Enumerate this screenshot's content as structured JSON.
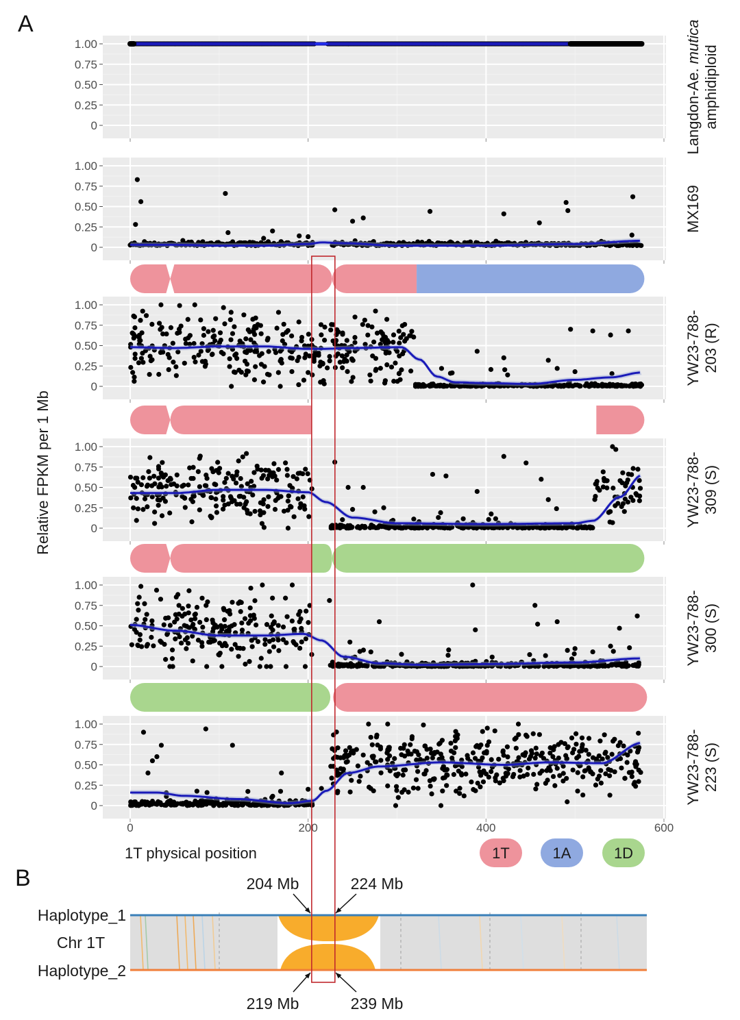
{
  "figure": {
    "panel_a_letter": "A",
    "panel_b_letter": "B"
  },
  "chart_data": {
    "type": "scatter",
    "title": "",
    "xlabel": "1T physical position",
    "ylabel": "Relative FPKM per 1 Mb",
    "xlim": [
      0,
      575
    ],
    "ylim": [
      0,
      1.0
    ],
    "x_ticks": [
      "0",
      "200",
      "400",
      "600"
    ],
    "x_tick_values": [
      0,
      200,
      400,
      600
    ],
    "y_ticks": [
      "0",
      "0.25",
      "0.50",
      "0.75",
      "1.00"
    ],
    "y_tick_values": [
      0,
      0.25,
      0.5,
      0.75,
      1.0
    ],
    "grid": true,
    "highlight_region_mb": [
      204,
      224
    ],
    "highlight_color": "#c0282d",
    "point_color": "#000000",
    "smooth_color": "#1a1ab8",
    "legend": {
      "placement": "bottom-right",
      "entries": [
        {
          "label": "1T",
          "color": "#ee939c"
        },
        {
          "label": "1A",
          "color": "#8fa9e0"
        },
        {
          "label": "1D",
          "color": "#a9d68e"
        }
      ]
    },
    "panels": [
      {
        "strip": [
          "Langdon-Ae. mutica",
          "amphidiploid"
        ],
        "strip_italic_part": "mutica",
        "karyotype": null,
        "constant_value": 1.0,
        "gap_mb": [
          208,
          222
        ],
        "smooth": [
          [
            0,
            1.0
          ],
          [
            575,
            1.0
          ]
        ]
      },
      {
        "strip": [
          "MX169"
        ],
        "karyotype": null,
        "outliers": [
          [
            8,
            0.83
          ],
          [
            12,
            0.56
          ],
          [
            6,
            0.28
          ],
          [
            107,
            0.66
          ],
          [
            205,
            0.06
          ],
          [
            230,
            0.46
          ],
          [
            250,
            0.32
          ],
          [
            262,
            0.36
          ],
          [
            337,
            0.44
          ],
          [
            420,
            0.41
          ],
          [
            460,
            0.3
          ],
          [
            490,
            0.55
          ],
          [
            492,
            0.45
          ],
          [
            565,
            0.62
          ],
          [
            564,
            0.15
          ],
          [
            150,
            0.11
          ],
          [
            160,
            0.2
          ],
          [
            110,
            0.18
          ],
          [
            190,
            0.14
          ],
          [
            200,
            0.13
          ]
        ],
        "baseline": 0.02,
        "spread": 0.04,
        "smooth": [
          [
            0,
            0.03
          ],
          [
            50,
            0.03
          ],
          [
            100,
            0.02
          ],
          [
            150,
            0.02
          ],
          [
            200,
            0.04
          ],
          [
            215,
            0.06
          ],
          [
            240,
            0.05
          ],
          [
            300,
            0.02
          ],
          [
            400,
            0.02
          ],
          [
            500,
            0.04
          ],
          [
            575,
            0.08
          ]
        ]
      },
      {
        "strip": [
          "YW23-788-",
          "203 (R)"
        ],
        "karyotype": [
          {
            "start": 0,
            "end": 45,
            "chrom": "1T",
            "shape": "cen-left"
          },
          {
            "start": 45,
            "end": 227,
            "chrom": "1T",
            "shape": "cen-right"
          },
          {
            "start": 227,
            "end": 322,
            "chrom": "1T",
            "shape": "left-cap"
          },
          {
            "start": 322,
            "end": 578,
            "chrom": "1A",
            "shape": "right-cap"
          }
        ],
        "scatter_segments": [
          {
            "from": 0,
            "to": 320,
            "center": 0.47,
            "spread": 0.26,
            "density": 1.1
          },
          {
            "from": 320,
            "to": 575,
            "center": 0.02,
            "spread": 0.02,
            "density": 1.0
          }
        ],
        "outliers": [
          [
            350,
            0.22
          ],
          [
            360,
            0.16
          ],
          [
            390,
            0.43
          ],
          [
            420,
            0.35
          ],
          [
            470,
            0.32
          ],
          [
            495,
            0.7
          ],
          [
            520,
            0.68
          ],
          [
            540,
            0.63
          ],
          [
            560,
            0.68
          ],
          [
            480,
            0.22
          ],
          [
            500,
            0.18
          ]
        ],
        "smooth": [
          [
            0,
            0.48
          ],
          [
            50,
            0.47
          ],
          [
            100,
            0.49
          ],
          [
            150,
            0.49
          ],
          [
            200,
            0.46
          ],
          [
            215,
            0.46
          ],
          [
            250,
            0.47
          ],
          [
            305,
            0.48
          ],
          [
            325,
            0.33
          ],
          [
            345,
            0.12
          ],
          [
            365,
            0.05
          ],
          [
            400,
            0.04
          ],
          [
            450,
            0.03
          ],
          [
            500,
            0.08
          ],
          [
            540,
            0.11
          ],
          [
            575,
            0.17
          ]
        ]
      },
      {
        "strip": [
          "YW23-788-",
          "309 (S)"
        ],
        "karyotype": [
          {
            "start": 0,
            "end": 45,
            "chrom": "1T",
            "shape": "cen-left"
          },
          {
            "start": 45,
            "end": 204,
            "chrom": "1T",
            "shape": "cen-right-flat"
          },
          {
            "start": 524,
            "end": 578,
            "chrom": "1T",
            "shape": "right-cap"
          }
        ],
        "scatter_segments": [
          {
            "from": 0,
            "to": 205,
            "center": 0.45,
            "spread": 0.26,
            "density": 1.1
          },
          {
            "from": 225,
            "to": 520,
            "center": 0.03,
            "spread": 0.03,
            "density": 1.0
          },
          {
            "from": 520,
            "to": 575,
            "center": 0.45,
            "spread": 0.25,
            "density": 0.9
          }
        ],
        "outliers": [
          [
            230,
            0.81
          ],
          [
            245,
            0.5
          ],
          [
            262,
            0.5
          ],
          [
            340,
            0.66
          ],
          [
            355,
            0.64
          ],
          [
            390,
            0.45
          ],
          [
            420,
            0.88
          ],
          [
            445,
            0.8
          ],
          [
            462,
            0.6
          ],
          [
            470,
            0.35
          ],
          [
            285,
            0.25
          ],
          [
            250,
            0.23
          ],
          [
            275,
            0.2
          ]
        ],
        "smooth": [
          [
            0,
            0.43
          ],
          [
            50,
            0.43
          ],
          [
            100,
            0.47
          ],
          [
            150,
            0.47
          ],
          [
            200,
            0.44
          ],
          [
            220,
            0.32
          ],
          [
            250,
            0.13
          ],
          [
            300,
            0.06
          ],
          [
            400,
            0.05
          ],
          [
            500,
            0.06
          ],
          [
            520,
            0.09
          ],
          [
            550,
            0.38
          ],
          [
            575,
            0.65
          ]
        ]
      },
      {
        "strip": [
          "YW23-788-",
          "300 (S)"
        ],
        "karyotype": [
          {
            "start": 0,
            "end": 45,
            "chrom": "1T",
            "shape": "cen-left"
          },
          {
            "start": 45,
            "end": 204,
            "chrom": "1T",
            "shape": "cen-right-flat"
          },
          {
            "start": 204,
            "end": 227,
            "chrom": "1D",
            "shape": "right-cap-small"
          },
          {
            "start": 227,
            "end": 578,
            "chrom": "1D",
            "shape": "left-right-cap"
          }
        ],
        "scatter_segments": [
          {
            "from": 0,
            "to": 205,
            "center": 0.42,
            "spread": 0.3,
            "density": 1.1
          },
          {
            "from": 225,
            "to": 575,
            "center": 0.03,
            "spread": 0.03,
            "density": 1.1
          }
        ],
        "outliers": [
          [
            224,
            0.81
          ],
          [
            247,
            0.3
          ],
          [
            280,
            0.55
          ],
          [
            305,
            0.15
          ],
          [
            385,
            1.0
          ],
          [
            388,
            0.45
          ],
          [
            455,
            0.75
          ],
          [
            458,
            0.52
          ],
          [
            480,
            0.55
          ],
          [
            550,
            0.47
          ],
          [
            570,
            0.62
          ],
          [
            500,
            0.22
          ],
          [
            520,
            0.18
          ],
          [
            540,
            0.25
          ]
        ],
        "smooth": [
          [
            0,
            0.51
          ],
          [
            50,
            0.44
          ],
          [
            100,
            0.38
          ],
          [
            150,
            0.38
          ],
          [
            195,
            0.4
          ],
          [
            215,
            0.32
          ],
          [
            240,
            0.12
          ],
          [
            280,
            0.04
          ],
          [
            330,
            0.02
          ],
          [
            400,
            0.03
          ],
          [
            500,
            0.05
          ],
          [
            575,
            0.1
          ]
        ]
      },
      {
        "strip": [
          "YW23-788-",
          "223 (S)"
        ],
        "karyotype": [
          {
            "start": 0,
            "end": 225,
            "chrom": "1D",
            "shape": "both-caps"
          },
          {
            "start": 228,
            "end": 581,
            "chrom": "1T",
            "shape": "both-caps"
          }
        ],
        "scatter_segments": [
          {
            "from": 0,
            "to": 205,
            "center": 0.04,
            "spread": 0.05,
            "density": 1.1
          },
          {
            "from": 225,
            "to": 575,
            "center": 0.52,
            "spread": 0.25,
            "density": 1.2
          }
        ],
        "outliers": [
          [
            15,
            0.9
          ],
          [
            35,
            0.74
          ],
          [
            20,
            0.4
          ],
          [
            25,
            0.55
          ],
          [
            30,
            0.6
          ],
          [
            85,
            0.94
          ],
          [
            115,
            0.74
          ],
          [
            200,
            0.2
          ],
          [
            215,
            0.21
          ],
          [
            170,
            0.4
          ]
        ],
        "smooth": [
          [
            0,
            0.16
          ],
          [
            30,
            0.16
          ],
          [
            60,
            0.12
          ],
          [
            120,
            0.08
          ],
          [
            180,
            0.03
          ],
          [
            205,
            0.06
          ],
          [
            220,
            0.18
          ],
          [
            245,
            0.4
          ],
          [
            280,
            0.48
          ],
          [
            350,
            0.53
          ],
          [
            420,
            0.5
          ],
          [
            470,
            0.53
          ],
          [
            530,
            0.52
          ],
          [
            575,
            0.77
          ]
        ]
      }
    ],
    "synteny": {
      "track_labels": [
        "Haplotype_1",
        "Chr 1T",
        "Haplotype_2"
      ],
      "hap1_color": "#3a7fb8",
      "hap2_color": "#f07f3a",
      "inversion_color": "#f8ac2c",
      "hap1_breakpoints": [
        "204 Mb",
        "224 Mb"
      ],
      "hap2_breakpoints": [
        "219 Mb",
        "239 Mb"
      ]
    }
  }
}
